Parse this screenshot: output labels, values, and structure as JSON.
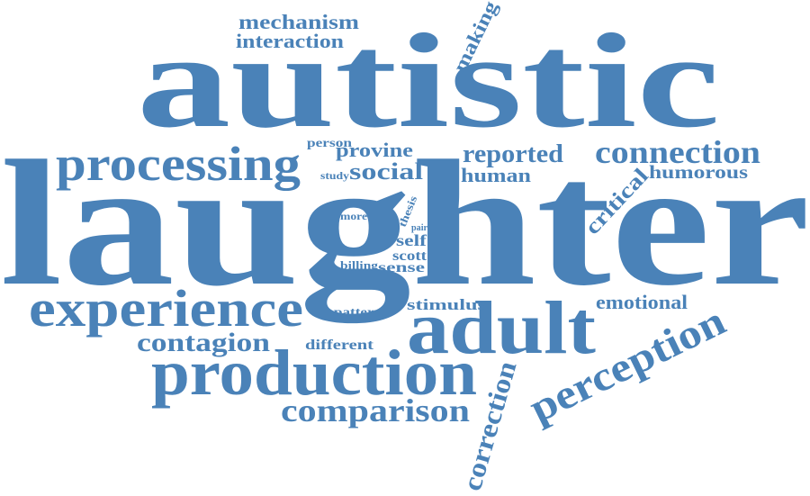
{
  "cloud": {
    "color": "#4a82b8",
    "words": {
      "laughter": "laughter",
      "autistic": "autistic",
      "adult": "adult",
      "production": "production",
      "experience": "experience",
      "processing": "processing",
      "perception": "perception",
      "connection": "connection",
      "comparison": "comparison",
      "contagion": "contagion",
      "correction": "correction",
      "mechanism": "mechanism",
      "interaction": "interaction",
      "making": "making",
      "reported": "reported",
      "human": "human",
      "humorous": "humorous",
      "critical": "critical",
      "emotional": "emotional",
      "social": "social",
      "provine": "provine",
      "person": "person",
      "study": "study",
      "thesis": "thesis",
      "pair": "pair",
      "more": "more",
      "self": "self",
      "scott": "scott",
      "billing": "billing",
      "sense": "sense",
      "stimulus": "stimulus",
      "pattern": "pattern",
      "different": "different"
    }
  }
}
